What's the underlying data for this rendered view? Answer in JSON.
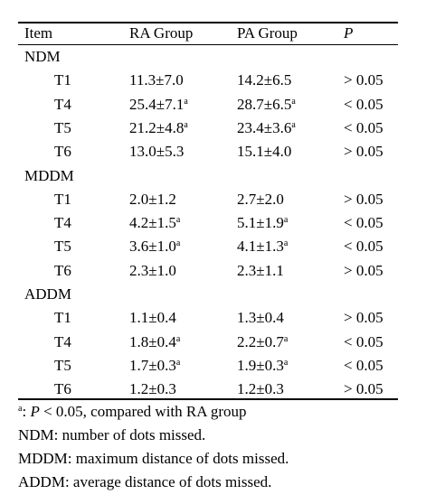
{
  "table": {
    "header": [
      "Item",
      "RA Group",
      "PA Group",
      "P"
    ],
    "groups": [
      {
        "name": "NDM",
        "rows": [
          {
            "label": "T1",
            "ra": {
              "text": "11.3±7.0"
            },
            "pa": {
              "text": "14.2±6.5"
            },
            "p": "> 0.05"
          },
          {
            "label": "T4",
            "ra": {
              "text": "25.4±7.1",
              "sup": "a"
            },
            "pa": {
              "text": "28.7±6.5",
              "sup": "a"
            },
            "p": "< 0.05"
          },
          {
            "label": "T5",
            "ra": {
              "text": "21.2±4.8",
              "sup": "a"
            },
            "pa": {
              "text": "23.4±3.6",
              "sup": "a"
            },
            "p": "< 0.05"
          },
          {
            "label": "T6",
            "ra": {
              "text": "13.0±5.3"
            },
            "pa": {
              "text": "15.1±4.0"
            },
            "p": "> 0.05"
          }
        ]
      },
      {
        "name": "MDDM",
        "rows": [
          {
            "label": "T1",
            "ra": {
              "text": "2.0±1.2"
            },
            "pa": {
              "text": "2.7±2.0"
            },
            "p": "> 0.05"
          },
          {
            "label": "T4",
            "ra": {
              "text": "4.2±1.5",
              "sup": "a"
            },
            "pa": {
              "text": "5.1±1.9",
              "sup": "a"
            },
            "p": "< 0.05"
          },
          {
            "label": "T5",
            "ra": {
              "text": "3.6±1.0",
              "sup": "a"
            },
            "pa": {
              "text": "4.1±1.3",
              "sup": "a"
            },
            "p": "< 0.05"
          },
          {
            "label": "T6",
            "ra": {
              "text": "2.3±1.0"
            },
            "pa": {
              "text": "2.3±1.1"
            },
            "p": "> 0.05"
          }
        ]
      },
      {
        "name": "ADDM",
        "rows": [
          {
            "label": "T1",
            "ra": {
              "text": "1.1±0.4"
            },
            "pa": {
              "text": "1.3±0.4"
            },
            "p": "> 0.05"
          },
          {
            "label": "T4",
            "ra": {
              "text": "1.8±0.4",
              "sup": "a"
            },
            "pa": {
              "text": "2.2±0.7",
              "sup": "a"
            },
            "p": "< 0.05"
          },
          {
            "label": "T5",
            "ra": {
              "text": "1.7±0.3",
              "sup": "a"
            },
            "pa": {
              "text": "1.9±0.3",
              "sup": "a"
            },
            "p": "< 0.05"
          },
          {
            "label": "T6",
            "ra": {
              "text": "1.2±0.3"
            },
            "pa": {
              "text": "1.2±0.3"
            },
            "p": "> 0.05"
          }
        ]
      }
    ],
    "footnotes": {
      "significance": {
        "sup": "a",
        "text": ": ",
        "italic": "P",
        "rest": " < 0.05, compared with RA group"
      },
      "lines": [
        "NDM: number of dots missed.",
        "MDDM: maximum distance of dots missed.",
        "ADDM: average distance of dots missed."
      ]
    }
  }
}
